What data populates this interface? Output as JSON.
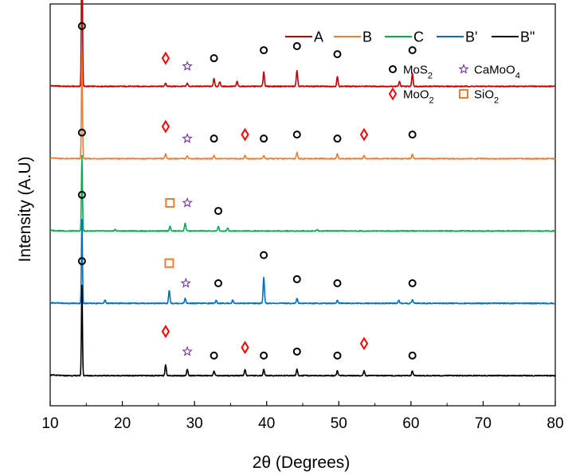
{
  "chart_data": {
    "type": "line",
    "title": "",
    "xlabel": "2θ (Degrees)",
    "ylabel": "Intensity (A.U)",
    "xlim": [
      10,
      80
    ],
    "xticks": [
      10,
      20,
      30,
      40,
      50,
      60,
      70,
      80
    ],
    "xtick_labels": [
      "10",
      "20",
      "30",
      "40",
      "50",
      "60",
      "70",
      "80"
    ],
    "legend_position": "top-right",
    "series": [
      {
        "name": "A",
        "color": "#c00000",
        "baseline": 0.795,
        "scale": 0.4,
        "peaks": [
          [
            14.4,
            1.0
          ],
          [
            26.0,
            0.02
          ],
          [
            29.0,
            0.02
          ],
          [
            32.7,
            0.05
          ],
          [
            33.5,
            0.03
          ],
          [
            35.9,
            0.03
          ],
          [
            39.6,
            0.09
          ],
          [
            44.2,
            0.1
          ],
          [
            49.8,
            0.06
          ],
          [
            58.4,
            0.03
          ],
          [
            60.2,
            0.08
          ]
        ],
        "markers": [
          {
            "x": 14.4,
            "symbol": "circle",
            "h": 0.485
          },
          {
            "x": 26.0,
            "symbol": "diamond",
            "h": 0.07
          },
          {
            "x": 29.0,
            "symbol": "star",
            "h": 0.05
          },
          {
            "x": 32.7,
            "symbol": "circle",
            "h": 0.07
          },
          {
            "x": 39.6,
            "symbol": "circle",
            "h": 0.09
          },
          {
            "x": 44.2,
            "symbol": "circle",
            "h": 0.1
          },
          {
            "x": 49.8,
            "symbol": "circle",
            "h": 0.08
          },
          {
            "x": 60.2,
            "symbol": "circle",
            "h": 0.09
          }
        ]
      },
      {
        "name": "B",
        "color": "#ed7d31",
        "baseline": 0.615,
        "scale": 0.4,
        "peaks": [
          [
            14.4,
            0.65
          ],
          [
            26.0,
            0.03
          ],
          [
            29.0,
            0.02
          ],
          [
            32.7,
            0.02
          ],
          [
            37.0,
            0.02
          ],
          [
            39.6,
            0.02
          ],
          [
            44.2,
            0.04
          ],
          [
            49.8,
            0.03
          ],
          [
            53.5,
            0.02
          ],
          [
            60.2,
            0.03
          ]
        ],
        "markers": [
          {
            "x": 14.4,
            "symbol": "circle",
            "h": 0.33
          },
          {
            "x": 26.0,
            "symbol": "diamond",
            "h": 0.08
          },
          {
            "x": 29.0,
            "symbol": "star",
            "h": 0.05
          },
          {
            "x": 32.7,
            "symbol": "circle",
            "h": 0.05
          },
          {
            "x": 37.0,
            "symbol": "diamond",
            "h": 0.06
          },
          {
            "x": 39.6,
            "symbol": "circle",
            "h": 0.05
          },
          {
            "x": 44.2,
            "symbol": "circle",
            "h": 0.06
          },
          {
            "x": 49.8,
            "symbol": "circle",
            "h": 0.05
          },
          {
            "x": 53.5,
            "symbol": "diamond",
            "h": 0.06
          },
          {
            "x": 60.2,
            "symbol": "circle",
            "h": 0.06
          }
        ]
      },
      {
        "name": "C",
        "color": "#00b050",
        "baseline": 0.435,
        "scale": 0.4,
        "peaks": [
          [
            14.4,
            0.47
          ],
          [
            19.0,
            0.01
          ],
          [
            26.6,
            0.03
          ],
          [
            28.7,
            0.05
          ],
          [
            33.3,
            0.03
          ],
          [
            34.6,
            0.02
          ],
          [
            47.0,
            0.01
          ]
        ],
        "markers": [
          {
            "x": 14.4,
            "symbol": "circle",
            "h": 0.245
          },
          {
            "x": 26.6,
            "symbol": "square",
            "h": 0.07
          },
          {
            "x": 29.0,
            "symbol": "star",
            "h": 0.07
          },
          {
            "x": 33.3,
            "symbol": "circle",
            "h": 0.05
          }
        ]
      },
      {
        "name": "B'",
        "color": "#0070c0",
        "baseline": 0.255,
        "scale": 0.4,
        "peaks": [
          [
            14.4,
            0.52
          ],
          [
            17.6,
            0.02
          ],
          [
            26.5,
            0.08
          ],
          [
            28.7,
            0.03
          ],
          [
            33.0,
            0.02
          ],
          [
            35.3,
            0.02
          ],
          [
            39.6,
            0.16
          ],
          [
            44.2,
            0.03
          ],
          [
            49.8,
            0.02
          ],
          [
            58.3,
            0.02
          ],
          [
            60.2,
            0.02
          ]
        ],
        "markers": [
          {
            "x": 14.4,
            "symbol": "circle",
            "h": 0.27
          },
          {
            "x": 26.5,
            "symbol": "square",
            "h": 0.1
          },
          {
            "x": 28.8,
            "symbol": "star",
            "h": 0.05
          },
          {
            "x": 33.3,
            "symbol": "circle",
            "h": 0.05
          },
          {
            "x": 39.6,
            "symbol": "circle",
            "h": 0.12
          },
          {
            "x": 44.2,
            "symbol": "circle",
            "h": 0.06
          },
          {
            "x": 49.8,
            "symbol": "circle",
            "h": 0.05
          },
          {
            "x": 60.2,
            "symbol": "circle",
            "h": 0.05
          }
        ]
      },
      {
        "name": "B\"",
        "color": "#000000",
        "baseline": 0.075,
        "scale": 0.4,
        "peaks": [
          [
            14.4,
            0.56
          ],
          [
            26.0,
            0.07
          ],
          [
            29.0,
            0.04
          ],
          [
            32.7,
            0.03
          ],
          [
            37.0,
            0.04
          ],
          [
            39.6,
            0.04
          ],
          [
            44.2,
            0.04
          ],
          [
            49.8,
            0.03
          ],
          [
            53.5,
            0.03
          ],
          [
            60.2,
            0.03
          ]
        ],
        "markers": [
          {
            "x": 14.4,
            "symbol": "circle",
            "h": 0.285
          },
          {
            "x": 26.0,
            "symbol": "diamond",
            "h": 0.11
          },
          {
            "x": 29.0,
            "symbol": "star",
            "h": 0.06
          },
          {
            "x": 32.7,
            "symbol": "circle",
            "h": 0.05
          },
          {
            "x": 37.0,
            "symbol": "diamond",
            "h": 0.07
          },
          {
            "x": 39.6,
            "symbol": "circle",
            "h": 0.05
          },
          {
            "x": 44.2,
            "symbol": "circle",
            "h": 0.06
          },
          {
            "x": 49.8,
            "symbol": "circle",
            "h": 0.05
          },
          {
            "x": 53.5,
            "symbol": "diamond",
            "h": 0.08
          },
          {
            "x": 60.2,
            "symbol": "circle",
            "h": 0.05
          }
        ]
      }
    ],
    "phase_legend": [
      {
        "symbol": "circle",
        "label": "MoS",
        "sub": "2",
        "color": "#000000"
      },
      {
        "symbol": "star",
        "label": "CaMoO",
        "sub": "4",
        "color": "#7030a0"
      },
      {
        "symbol": "diamond",
        "label": "MoO",
        "sub": "2",
        "color": "#ff0000"
      },
      {
        "symbol": "square",
        "label": "SiO",
        "sub": "2",
        "color": "#ed7d31"
      }
    ],
    "marker_colors": {
      "circle": "#000000",
      "star": "#7030a0",
      "diamond": "#ff0000",
      "square": "#ed7d31"
    }
  }
}
